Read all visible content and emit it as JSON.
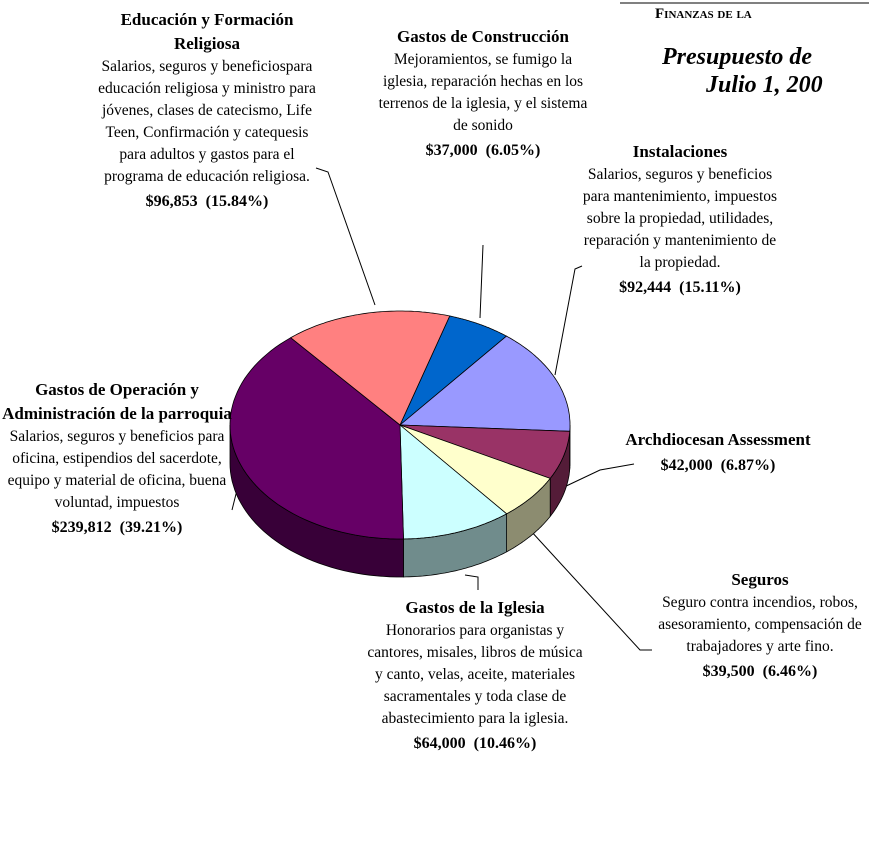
{
  "header": {
    "section": "Finanzas de la",
    "title_line1": "Presupuesto de",
    "title_line2": "Julio 1, 200"
  },
  "chart_data": {
    "type": "pie",
    "categories": [
      "Gastos de Construcción",
      "Instalaciones",
      "Archdiocesan Assessment",
      "Seguros",
      "Gastos de la Iglesia",
      "Gastos de Operación y Administración de la parroquia",
      "Educación y Formación Religiosa"
    ],
    "descriptions": [
      "Mejoramientos, se fumigo la iglesia, reparación hechas en los terrenos de la iglesia, y el sistema de sonido",
      "Salarios, seguros y beneficios para mantenimiento, impuestos sobre la propiedad, utilidades, reparación y mantenimiento de la propiedad.",
      null,
      "Seguro contra incendios, robos, asesoramiento, compensación de trabajadores y arte fino.",
      "Honorarios para organistas y cantores, misales, libros de música y canto, velas, aceite, materiales sacramentales y toda clase de abastecimiento para la iglesia.",
      "Salarios, seguros y beneficios para oficina, estipendios del sacerdote, equipo y material de oficina, buena voluntad, impuestos",
      "Salarios, seguros y beneficiospara educación religiosa y  ministro para jóvenes, clases de catecismo, Life Teen, Confirmación y catequesis para adultos y gastos para el programa de educación religiosa."
    ],
    "values": [
      37000,
      92444,
      42000,
      39500,
      64000,
      239812,
      96853
    ],
    "value_labels": [
      "$37,000  (6.05%)",
      "$92,444  (15.11%)",
      "$42,000  (6.87%)",
      "$39,500  (6.46%)",
      "$64,000  (10.46%)",
      "$239,812  (39.21%)",
      "$96,853  (15.84%)"
    ],
    "colors": [
      "#0066cc",
      "#9999ff",
      "#993366",
      "#ffffcc",
      "#ccffff",
      "#660066",
      "#ff8080"
    ]
  }
}
